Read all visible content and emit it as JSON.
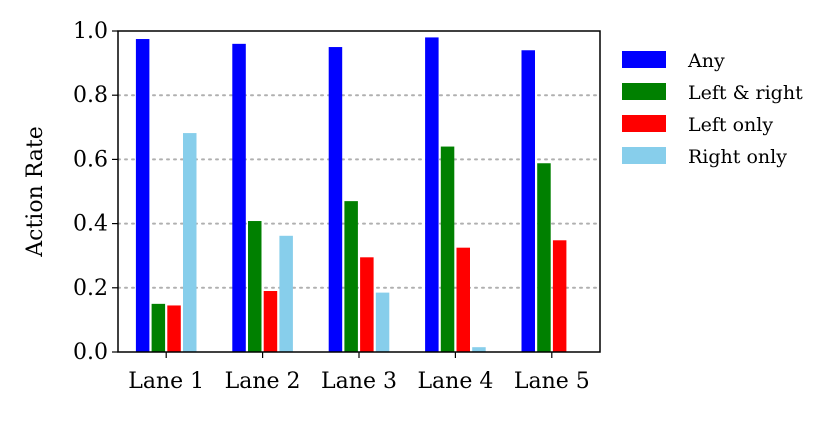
{
  "chart_data": {
    "type": "bar",
    "ylabel": "Action Rate",
    "ylim": [
      0,
      1.0
    ],
    "yticks": [
      "0.0",
      "0.2",
      "0.4",
      "0.6",
      "0.8",
      "1.0"
    ],
    "categories": [
      "Lane 1",
      "Lane 2",
      "Lane 3",
      "Lane 4",
      "Lane 5"
    ],
    "grid": "horizontal-dotted",
    "legend_position": "right",
    "series": [
      {
        "name": "Any",
        "color": "#0000ff",
        "values": [
          0.975,
          0.96,
          0.95,
          0.98,
          0.94
        ]
      },
      {
        "name": "Left & right",
        "color": "#008000",
        "values": [
          0.15,
          0.408,
          0.47,
          0.64,
          0.588
        ]
      },
      {
        "name": "Left only",
        "color": "#ff0000",
        "values": [
          0.145,
          0.19,
          0.295,
          0.325,
          0.348
        ]
      },
      {
        "name": "Right only",
        "color": "#87ceeb",
        "values": [
          0.682,
          0.362,
          0.185,
          0.015,
          0.0
        ]
      }
    ]
  }
}
